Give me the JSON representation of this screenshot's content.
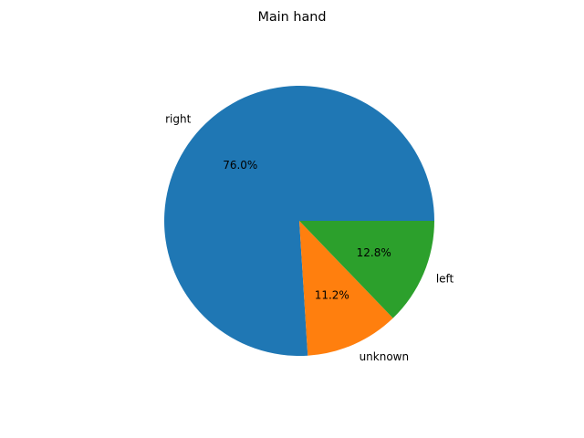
{
  "chart_data": {
    "type": "pie",
    "title": "Main hand",
    "slices": [
      {
        "label": "right",
        "value": 76.0,
        "pct_label": "76.0%",
        "color": "#1f77b4"
      },
      {
        "label": "unknown",
        "value": 11.2,
        "pct_label": "11.2%",
        "color": "#ff7f0e"
      },
      {
        "label": "left",
        "value": 12.8,
        "pct_label": "12.8%",
        "color": "#2ca02c"
      }
    ],
    "start_angle_deg": 0,
    "direction": "counterclockwise"
  }
}
